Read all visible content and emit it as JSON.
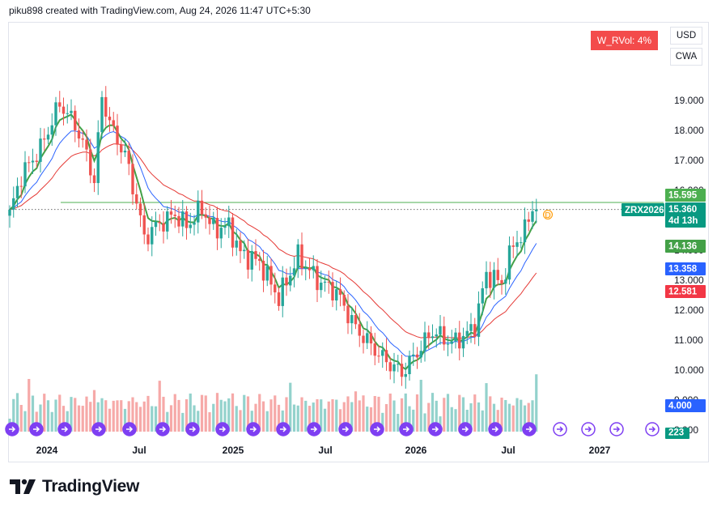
{
  "header": {
    "attribution": "piku898 created with TradingView.com, Aug 24, 2026 11:47 UTC+5:30"
  },
  "toolbar": {
    "currency": "USD",
    "settlement": "CWA"
  },
  "indicator_badge": {
    "text": "W_RVol: 4%",
    "color": "#f34b4b"
  },
  "brand": {
    "name": "TradingView",
    "icon": "tradingview-logo-icon"
  },
  "colors": {
    "up": "#26a69a",
    "down": "#ef5350",
    "ema_fast": "#43a047",
    "ema_mid": "#2962ff",
    "ema_slow": "#e53935",
    "resistance": "#4caf50",
    "vol_up": "#93d2cc",
    "vol_down": "#f6a9a8",
    "event_icon": "#7e3ff2"
  },
  "chart_data": {
    "type": "candlestick",
    "timeframe": "weekly",
    "symbol": "ZRX2026",
    "x_axis_labels": [
      "2024",
      "Jul",
      "2025",
      "Jul",
      "2026",
      "Jul",
      "2027"
    ],
    "y_ticks": [
      19.0,
      18.0,
      17.0,
      16.0,
      15.0,
      14.0,
      13.0,
      12.0,
      11.0,
      10.0,
      9.0,
      8.0
    ],
    "y_tick_labels": [
      "19.000",
      "18.000",
      "17.000",
      "16.000",
      "15.000",
      "14.000",
      "13.000",
      "12.000",
      "11.000",
      "10.000",
      "9.000",
      "8.000"
    ],
    "ylim": [
      7.9,
      20.4
    ],
    "close_anchors": [
      [
        0,
        15.2
      ],
      [
        3,
        16.5
      ],
      [
        8,
        17.4
      ],
      [
        13,
        18.9
      ],
      [
        17,
        18.2
      ],
      [
        20,
        17.2
      ],
      [
        22,
        16.3
      ],
      [
        24,
        19.1
      ],
      [
        27,
        17.9
      ],
      [
        30,
        17.2
      ],
      [
        33,
        15.6
      ],
      [
        35,
        14.4
      ],
      [
        38,
        14.8
      ],
      [
        43,
        15.2
      ],
      [
        46,
        14.8
      ],
      [
        50,
        15.4
      ],
      [
        53,
        14.7
      ],
      [
        57,
        14.8
      ],
      [
        60,
        13.9
      ],
      [
        65,
        13.6
      ],
      [
        70,
        12.4
      ],
      [
        75,
        13.8
      ],
      [
        80,
        13.0
      ],
      [
        85,
        12.6
      ],
      [
        90,
        11.4
      ],
      [
        97,
        10.4
      ],
      [
        102,
        9.9
      ],
      [
        106,
        10.6
      ],
      [
        110,
        11.3
      ],
      [
        115,
        10.9
      ],
      [
        119,
        11.2
      ],
      [
        121,
        11.5
      ],
      [
        124,
        13.2
      ],
      [
        128,
        12.9
      ],
      [
        131,
        14.2
      ],
      [
        134,
        14.6
      ],
      [
        136,
        15.3
      ]
    ],
    "series_labels": {
      "resistance": "15.595",
      "last_price": "15.360",
      "countdown": "4d 13h",
      "ema_fast": "14.136",
      "ema_mid": "13.358",
      "ema_slow": "12.581",
      "volume": "4.000",
      "events": "223"
    },
    "resistance_level": 15.595,
    "last_close": 15.36,
    "dividend_marker": "D",
    "events_count_label": "223",
    "grid": false,
    "legend": "none"
  }
}
